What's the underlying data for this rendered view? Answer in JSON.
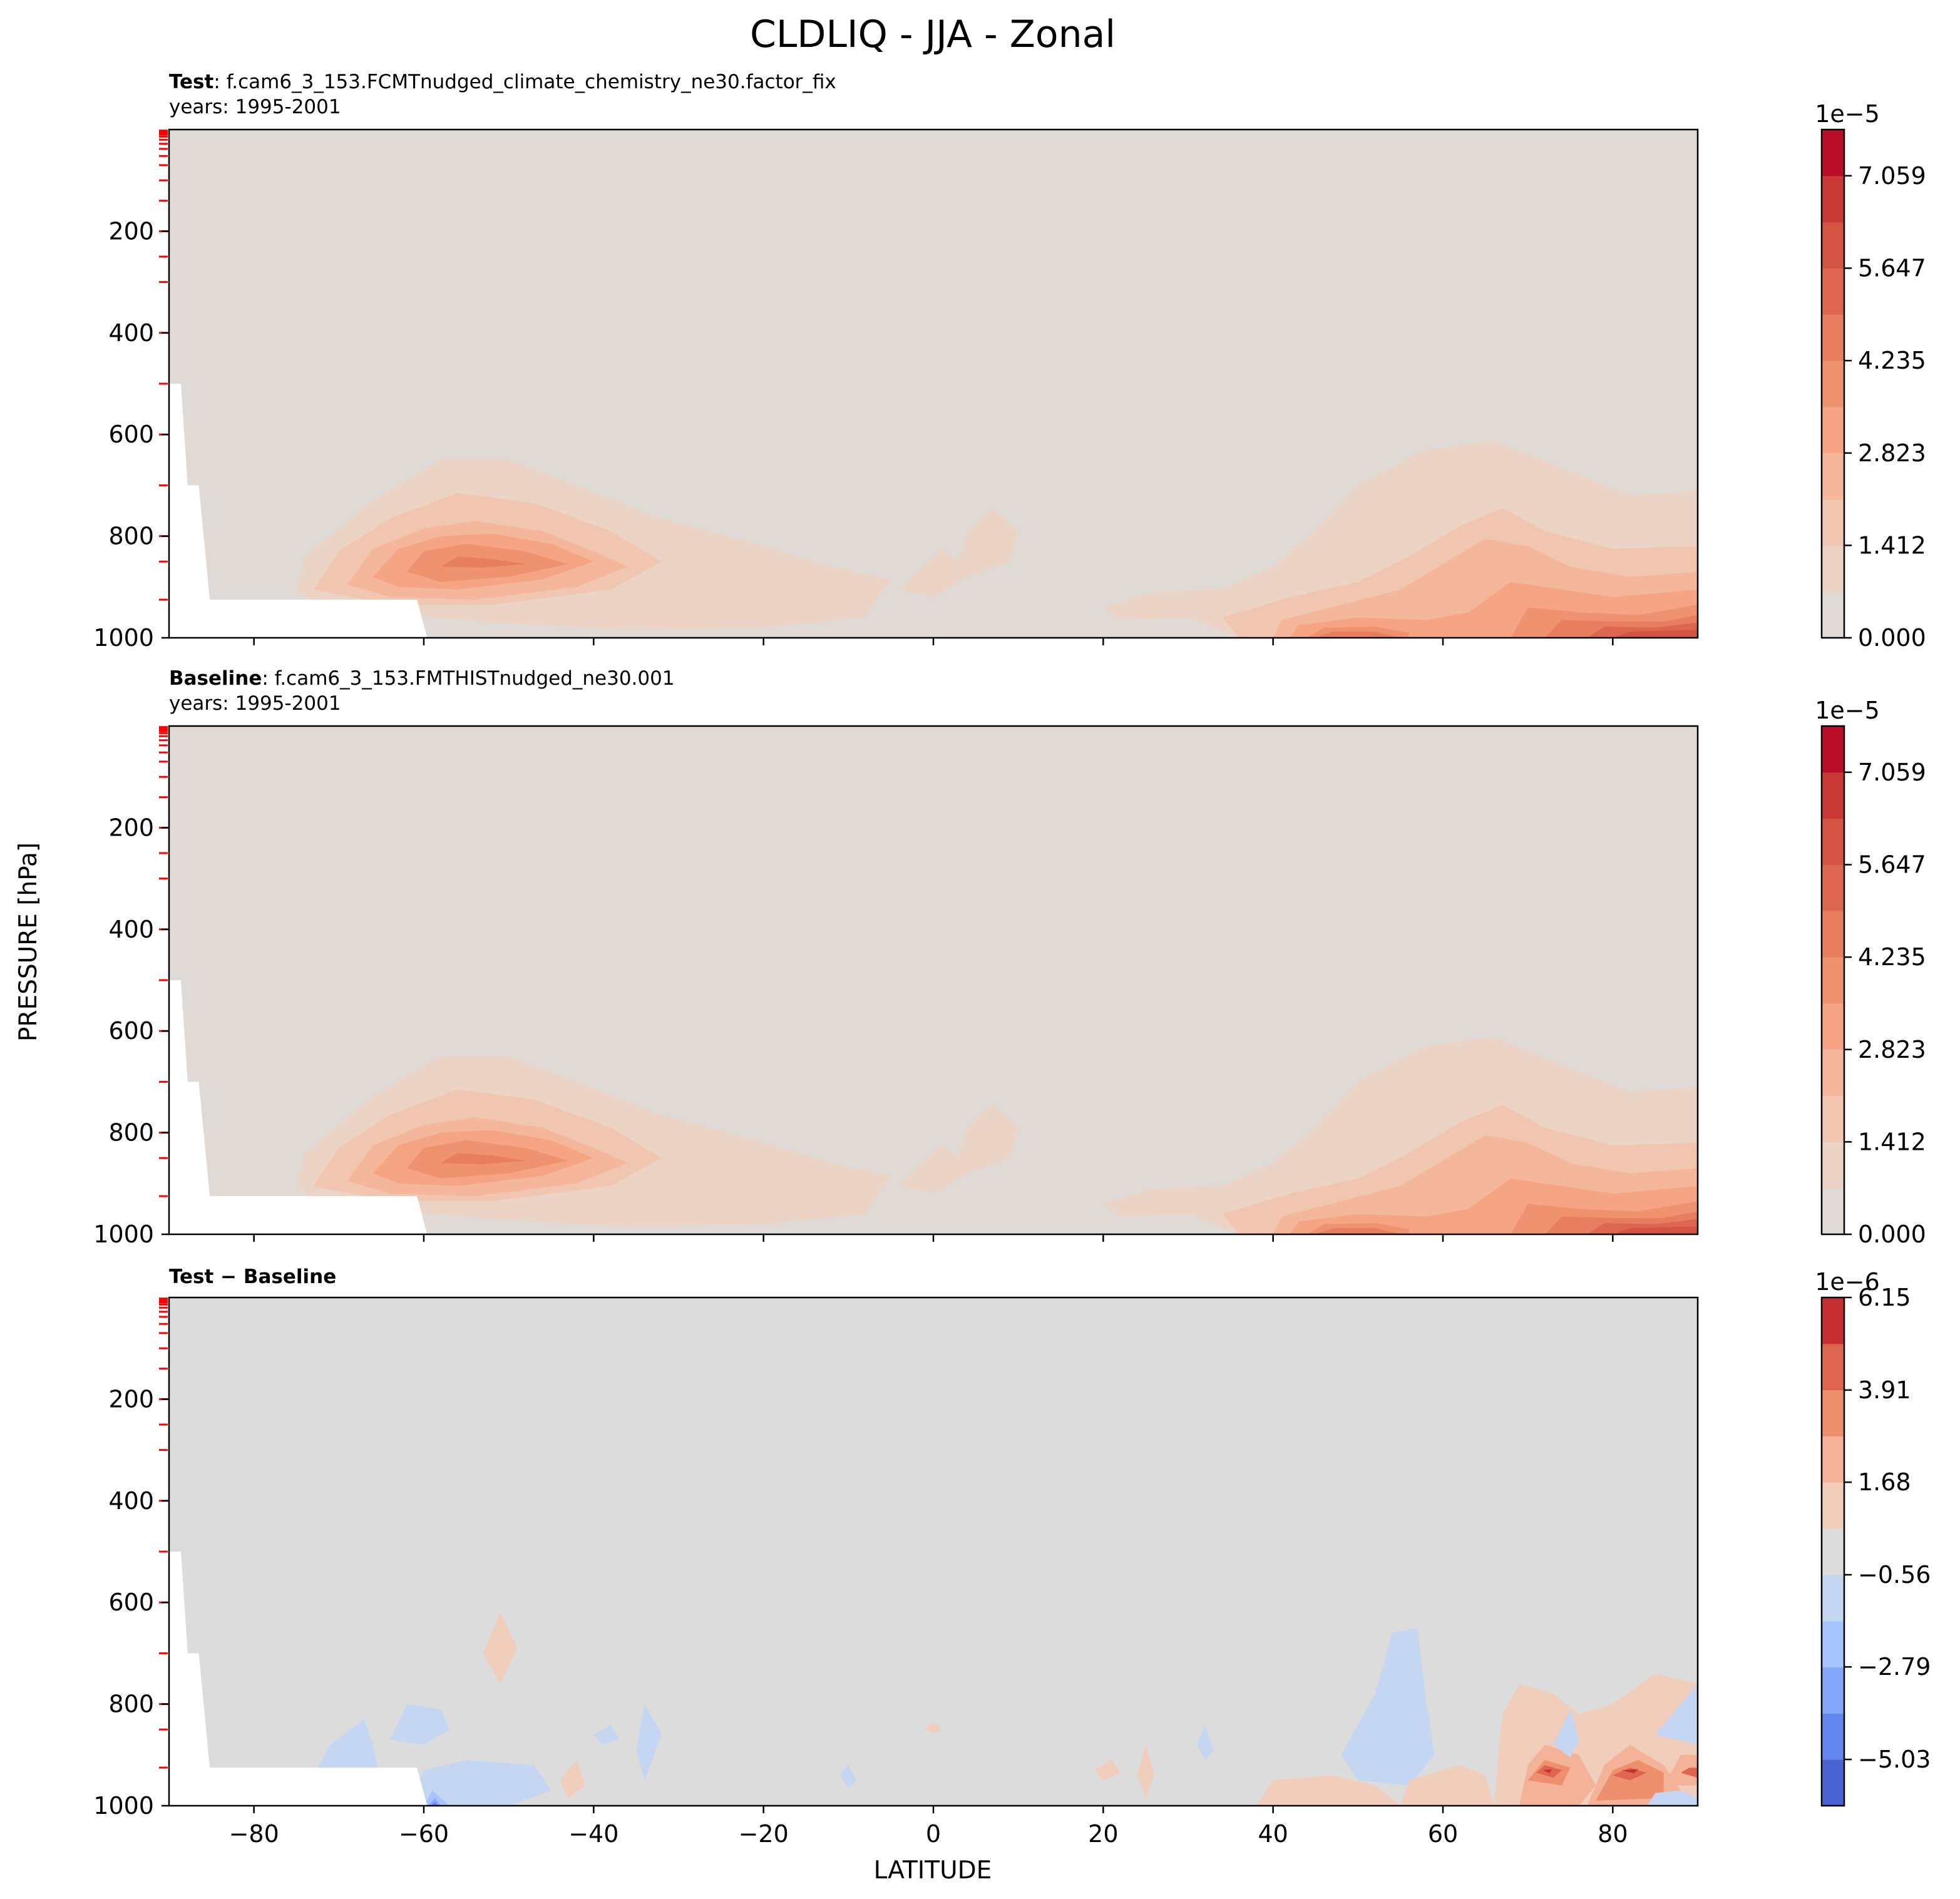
{
  "chart_data": {
    "type": "contour",
    "title": "CLDLIQ - JJA - Zonal",
    "xlabel": "LATITUDE",
    "ylabel": "PRESSURE [hPa]",
    "xlim": [
      -90,
      90
    ],
    "ylim": [
      1000,
      0
    ],
    "x_ticks": [
      "−80",
      "−60",
      "−40",
      "−20",
      "0",
      "20",
      "40",
      "60",
      "80"
    ],
    "y_ticks": [
      "200",
      "400",
      "600",
      "800",
      "1000"
    ],
    "panels": [
      {
        "label_bold": "Test",
        "label_rest": ": f.cam6_3_153.FCMTnudged_climate_chemistry_ne30.factor_fix",
        "years": "years: 1995-2001",
        "colorbar": {
          "multiplier": "1e−5",
          "tick_labels": [
            "7.059",
            "5.647",
            "4.235",
            "2.823",
            "1.412",
            "0.000"
          ],
          "tick_values": [
            7.059,
            5.647,
            4.235,
            2.823,
            1.412,
            0.0
          ],
          "range": [
            0,
            7.765
          ],
          "levels": [
            "#e0dad6",
            "#ebd3c6",
            "#f1c6b1",
            "#f4b79b",
            "#f5a584",
            "#ef926f",
            "#e87e60",
            "#dd6651",
            "#d45444",
            "#c83836",
            "#b90d28"
          ]
        },
        "features": [
          {
            "kind": "cloud_band",
            "lat_center": -54,
            "p_center": 850,
            "max_value": 4.9
          },
          {
            "kind": "cloud_band",
            "lat_center": 50,
            "p_center": 980,
            "max_value": 5.6
          },
          {
            "kind": "cloud_band",
            "lat_center": 86,
            "p_center": 990,
            "max_value": 7.4
          }
        ]
      },
      {
        "label_bold": "Baseline",
        "label_rest": ": f.cam6_3_153.FMTHISTnudged_ne30.001",
        "years": "years: 1995-2001",
        "colorbar": {
          "multiplier": "1e−5",
          "tick_labels": [
            "7.059",
            "5.647",
            "4.235",
            "2.823",
            "1.412",
            "0.000"
          ],
          "tick_values": [
            7.059,
            5.647,
            4.235,
            2.823,
            1.412,
            0.0
          ],
          "range": [
            0,
            7.765
          ],
          "levels": [
            "#e0dad6",
            "#ebd3c6",
            "#f1c6b1",
            "#f4b79b",
            "#f5a584",
            "#ef926f",
            "#e87e60",
            "#dd6651",
            "#d45444",
            "#c83836",
            "#b90d28"
          ]
        },
        "features": [
          {
            "kind": "cloud_band",
            "lat_center": -54,
            "p_center": 850,
            "max_value": 4.8
          },
          {
            "kind": "cloud_band",
            "lat_center": 50,
            "p_center": 980,
            "max_value": 5.5
          },
          {
            "kind": "cloud_band",
            "lat_center": 86,
            "p_center": 990,
            "max_value": 7.3
          }
        ]
      },
      {
        "label_bold": "Test − Baseline",
        "label_rest": "",
        "years": "",
        "colorbar": {
          "multiplier": "1e−6",
          "tick_labels": [
            "6.15",
            "3.91",
            "1.68",
            "−0.56",
            "−2.79",
            "−5.03"
          ],
          "tick_values": [
            6.15,
            3.91,
            1.68,
            -0.56,
            -2.79,
            -5.03
          ],
          "range": [
            -6.15,
            6.15
          ],
          "levels": [
            "#4a63d3",
            "#6386ee",
            "#84a7fa",
            "#a7c4fe",
            "#c5d6f2",
            "#dcdcdc",
            "#f1cdbb",
            "#f4b398",
            "#ee8f6d",
            "#de6550",
            "#c52f32"
          ]
        },
        "features": [
          {
            "kind": "anomaly",
            "lat_center": -58,
            "p_center": 995,
            "sign": "negative"
          },
          {
            "kind": "anomaly",
            "lat_center": 55,
            "p_center": 820,
            "sign": "negative"
          },
          {
            "kind": "anomaly",
            "lat_center": 72,
            "p_center": 925,
            "sign": "positive"
          },
          {
            "kind": "anomaly",
            "lat_center": 82,
            "p_center": 930,
            "sign": "positive"
          },
          {
            "kind": "anomaly",
            "lat_center": 89,
            "p_center": 930,
            "sign": "positive"
          }
        ]
      }
    ],
    "grid": false,
    "legend": "colorbar-right"
  }
}
